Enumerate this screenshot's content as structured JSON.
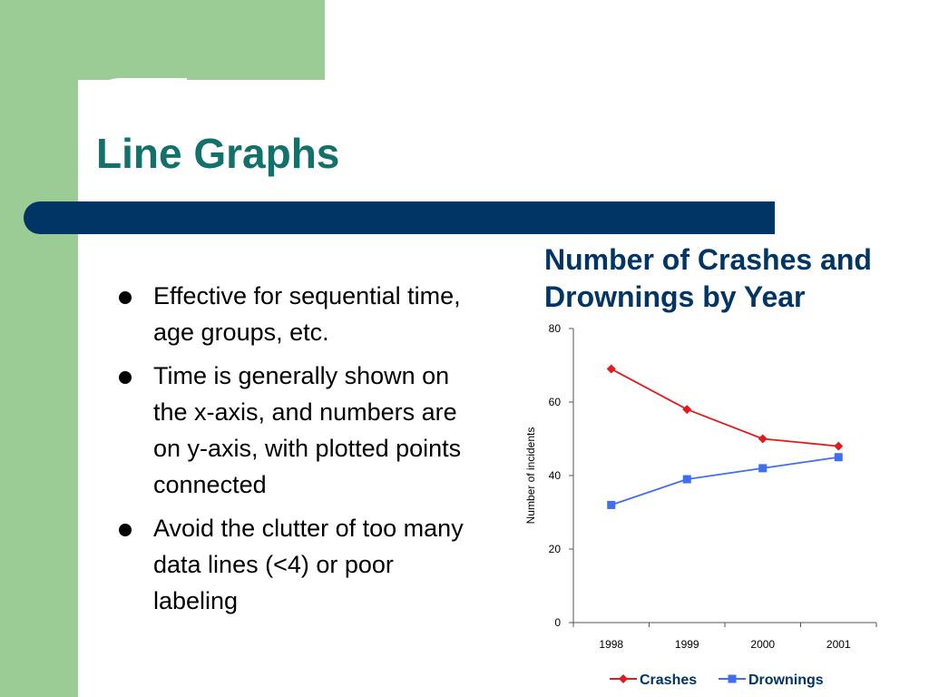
{
  "slide": {
    "title": "Line Graphs",
    "bullets": [
      "Effective for sequential time, age groups, etc.",
      "Time is generally shown on the x-axis, and numbers are on y-axis, with plotted points connected",
      "Avoid the clutter of too many data lines (<4) or poor labeling"
    ]
  },
  "colors": {
    "accent_green": "#9ccc95",
    "title_bar": "#013566",
    "title_text": "#12716b",
    "crashes": "#e31a1c",
    "drownings": "#3f6ff0"
  },
  "chart_data": {
    "type": "line",
    "title": "Number of Crashes and Drownings by Year",
    "xlabel": "",
    "ylabel": "Number of incidents",
    "categories": [
      "1998",
      "1999",
      "2000",
      "2001"
    ],
    "ylim": [
      0,
      80
    ],
    "yticks": [
      "0",
      "20",
      "40",
      "60",
      "80"
    ],
    "grid": false,
    "legend_position": "bottom",
    "series": [
      {
        "name": "Crashes",
        "values": [
          69,
          58,
          50,
          48
        ],
        "color": "#e31a1c",
        "marker": "diamond"
      },
      {
        "name": "Drownings",
        "values": [
          32,
          39,
          42,
          45
        ],
        "color": "#3f6ff0",
        "marker": "square"
      }
    ]
  }
}
